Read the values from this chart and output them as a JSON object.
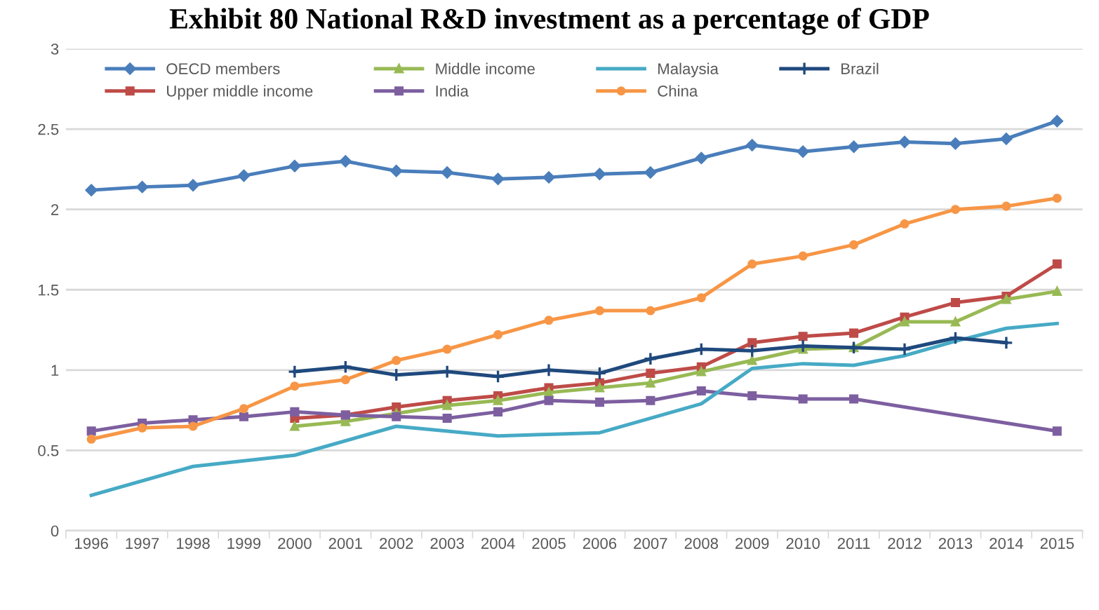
{
  "chart_data": {
    "type": "line",
    "title": "Exhibit 80 National R&D investment as a percentage of GDP",
    "categories": [
      "1996",
      "1997",
      "1998",
      "1999",
      "2000",
      "2001",
      "2002",
      "2003",
      "2004",
      "2005",
      "2006",
      "2007",
      "2008",
      "2009",
      "2010",
      "2011",
      "2012",
      "2013",
      "2014",
      "2015"
    ],
    "series": [
      {
        "name": "OECD members",
        "color": "#4a7ebb",
        "marker": "diamond",
        "values": [
          2.12,
          2.14,
          2.15,
          2.21,
          2.27,
          2.3,
          2.24,
          2.23,
          2.19,
          2.2,
          2.22,
          2.23,
          2.32,
          2.4,
          2.36,
          2.39,
          2.42,
          2.41,
          2.44,
          2.55
        ]
      },
      {
        "name": "Upper middle income",
        "color": "#be4b48",
        "marker": "square",
        "values": [
          null,
          null,
          null,
          null,
          0.7,
          0.72,
          0.77,
          0.81,
          0.84,
          0.89,
          0.92,
          0.98,
          1.02,
          1.17,
          1.21,
          1.23,
          1.33,
          1.42,
          1.46,
          1.66
        ]
      },
      {
        "name": "Middle income",
        "color": "#98b954",
        "marker": "triangle",
        "values": [
          null,
          null,
          null,
          null,
          0.65,
          0.68,
          0.73,
          0.78,
          0.81,
          0.86,
          0.89,
          0.92,
          0.99,
          1.06,
          1.13,
          1.14,
          1.3,
          1.3,
          1.44,
          1.49
        ]
      },
      {
        "name": "India",
        "color": "#7d5fa0",
        "marker": "square",
        "values": [
          0.62,
          0.67,
          0.69,
          0.71,
          0.74,
          0.72,
          0.71,
          0.7,
          0.74,
          0.81,
          0.8,
          0.81,
          0.87,
          0.84,
          0.82,
          0.82,
          null,
          null,
          null,
          0.62
        ]
      },
      {
        "name": "Malaysia",
        "color": "#46aac5",
        "marker": "none",
        "values": [
          0.22,
          null,
          0.4,
          null,
          0.47,
          null,
          0.65,
          null,
          0.59,
          0.6,
          0.61,
          null,
          0.79,
          1.01,
          1.04,
          1.03,
          1.09,
          1.18,
          1.26,
          1.29
        ]
      },
      {
        "name": "China",
        "color": "#f79646",
        "marker": "circle",
        "values": [
          0.57,
          0.64,
          0.65,
          0.76,
          0.9,
          0.94,
          1.06,
          1.13,
          1.22,
          1.31,
          1.37,
          1.37,
          1.45,
          1.66,
          1.71,
          1.78,
          1.91,
          2.0,
          2.02,
          2.07
        ]
      },
      {
        "name": "Brazil",
        "color": "#1f497d",
        "marker": "cross",
        "values": [
          null,
          null,
          null,
          null,
          0.99,
          1.02,
          0.97,
          0.99,
          0.96,
          1.0,
          0.98,
          1.07,
          1.13,
          1.12,
          1.15,
          1.14,
          1.13,
          1.2,
          1.17,
          null
        ]
      }
    ],
    "ylim": [
      0,
      3
    ],
    "yticks": [
      0,
      0.5,
      1,
      1.5,
      2,
      2.5,
      3
    ],
    "grid": "y",
    "legend": "top"
  }
}
